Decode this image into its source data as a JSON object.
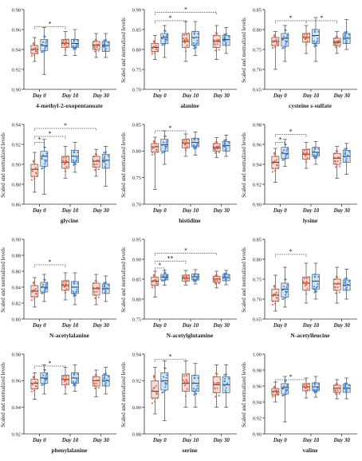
{
  "figure": {
    "colors": {
      "group_a": "#e8593a",
      "group_b": "#2f7fd6",
      "axis": "#333333",
      "sig": "#444444"
    }
  },
  "chart_data": [
    {
      "type": "box",
      "xlabel": "4-methyl-2-oxopentanoate",
      "ylabel": "",
      "ylim": [
        0.9,
        0.98
      ],
      "yticks": [
        0.9,
        0.92,
        0.94,
        0.96,
        0.98
      ],
      "categories": [
        "Day 0",
        "Day 10",
        "Day 30"
      ],
      "series": [
        {
          "group": "a",
          "boxes": [
            [
              0.928,
              0.936,
              0.94,
              0.944,
              0.952
            ],
            [
              0.934,
              0.942,
              0.946,
              0.95,
              0.958
            ],
            [
              0.932,
              0.94,
              0.944,
              0.948,
              0.956
            ]
          ]
        },
        {
          "group": "b",
          "boxes": [
            [
              0.915,
              0.939,
              0.944,
              0.95,
              0.962
            ],
            [
              0.934,
              0.942,
              0.946,
              0.95,
              0.96
            ],
            [
              0.932,
              0.938,
              0.944,
              0.948,
              0.956
            ]
          ]
        }
      ],
      "significance": [
        {
          "from": 0,
          "to": 1,
          "label": "*",
          "level": 0.963
        }
      ]
    },
    {
      "type": "box",
      "xlabel": "alanine",
      "ylabel": "Scaled and normalized levels",
      "ylim": [
        0.7,
        0.9
      ],
      "yticks": [
        0.7,
        0.75,
        0.8,
        0.85,
        0.9
      ],
      "categories": [
        "Day 0",
        "Day 10",
        "Day 30"
      ],
      "series": [
        {
          "group": "a",
          "boxes": [
            [
              0.775,
              0.795,
              0.805,
              0.815,
              0.835
            ],
            [
              0.77,
              0.805,
              0.82,
              0.84,
              0.87
            ],
            [
              0.775,
              0.805,
              0.82,
              0.835,
              0.86
            ]
          ]
        },
        {
          "group": "b",
          "boxes": [
            [
              0.78,
              0.815,
              0.83,
              0.84,
              0.86
            ],
            [
              0.785,
              0.81,
              0.83,
              0.845,
              0.87
            ],
            [
              0.79,
              0.81,
              0.825,
              0.835,
              0.855
            ]
          ]
        }
      ],
      "significance": [
        {
          "from": 0,
          "to": 1,
          "label": "*",
          "level": 0.872
        },
        {
          "from": 0,
          "to": 2,
          "label": "*",
          "level": 0.893
        }
      ]
    },
    {
      "type": "box",
      "xlabel": "cysteine s-sulfate",
      "ylabel": "Scaled and normalized levels",
      "ylim": [
        0.65,
        0.85
      ],
      "yticks": [
        0.65,
        0.7,
        0.75,
        0.8,
        0.85
      ],
      "categories": [
        "Day 0",
        "Day 10",
        "Day 30"
      ],
      "series": [
        {
          "group": "a",
          "boxes": [
            [
              0.7,
              0.76,
              0.77,
              0.78,
              0.795
            ],
            [
              0.74,
              0.768,
              0.78,
              0.79,
              0.81
            ],
            [
              0.74,
              0.76,
              0.768,
              0.778,
              0.795
            ]
          ]
        },
        {
          "group": "b",
          "boxes": [
            [
              0.72,
              0.758,
              0.778,
              0.79,
              0.81
            ],
            [
              0.72,
              0.765,
              0.785,
              0.8,
              0.83
            ],
            [
              0.75,
              0.765,
              0.778,
              0.79,
              0.825
            ]
          ]
        }
      ],
      "significance": [
        {
          "from": 0,
          "to": 1,
          "label": "*",
          "level": 0.822
        },
        {
          "from": 1,
          "to": 2,
          "label": "*",
          "level": 0.822
        }
      ]
    },
    {
      "type": "box",
      "xlabel": "glycine",
      "ylabel": "Scaled and normalized levels",
      "ylim": [
        0.86,
        0.94
      ],
      "yticks": [
        0.86,
        0.88,
        0.9,
        0.92,
        0.94
      ],
      "categories": [
        "Day 0",
        "Day 10",
        "Day 30"
      ],
      "series": [
        {
          "group": "a",
          "boxes": [
            [
              0.872,
              0.888,
              0.895,
              0.9,
              0.912
            ],
            [
              0.886,
              0.896,
              0.902,
              0.908,
              0.918
            ],
            [
              0.888,
              0.897,
              0.903,
              0.908,
              0.915
            ]
          ]
        },
        {
          "group": "b",
          "boxes": [
            [
              0.87,
              0.898,
              0.908,
              0.913,
              0.925
            ],
            [
              0.892,
              0.902,
              0.908,
              0.914,
              0.922
            ],
            [
              0.878,
              0.896,
              0.904,
              0.91,
              0.918
            ]
          ]
        }
      ],
      "significance": [
        {
          "from": 0,
          "to": 0.5,
          "label": "*",
          "level": 0.922
        },
        {
          "from": 0,
          "to": 1,
          "label": "*",
          "level": 0.928
        },
        {
          "from": 0,
          "to": 2,
          "label": "*",
          "level": 0.936
        }
      ]
    },
    {
      "type": "box",
      "xlabel": "histidine",
      "ylabel": "Scaled and normalized levels",
      "ylim": [
        0.7,
        0.85
      ],
      "yticks": [
        0.7,
        0.75,
        0.8,
        0.85
      ],
      "categories": [
        "Day 0",
        "Day 10",
        "Day 30"
      ],
      "series": [
        {
          "group": "a",
          "boxes": [
            [
              0.728,
              0.798,
              0.808,
              0.814,
              0.826
            ],
            [
              0.79,
              0.806,
              0.815,
              0.822,
              0.832
            ],
            [
              0.788,
              0.8,
              0.806,
              0.814,
              0.825
            ]
          ]
        },
        {
          "group": "b",
          "boxes": [
            [
              0.775,
              0.8,
              0.812,
              0.822,
              0.838
            ],
            [
              0.792,
              0.808,
              0.816,
              0.824,
              0.836
            ],
            [
              0.79,
              0.8,
              0.81,
              0.818,
              0.83
            ]
          ]
        }
      ],
      "significance": [
        {
          "from": 0,
          "to": 1,
          "label": "*",
          "level": 0.838
        }
      ]
    },
    {
      "type": "box",
      "xlabel": "lysine",
      "ylabel": "Scaled and normalized levels",
      "ylim": [
        0.9,
        0.98
      ],
      "yticks": [
        0.9,
        0.92,
        0.94,
        0.96,
        0.98
      ],
      "categories": [
        "Day 0",
        "Day 10",
        "Day 30"
      ],
      "series": [
        {
          "group": "a",
          "boxes": [
            [
              0.922,
              0.936,
              0.942,
              0.948,
              0.956
            ],
            [
              0.936,
              0.945,
              0.95,
              0.955,
              0.962
            ],
            [
              0.926,
              0.94,
              0.946,
              0.951,
              0.958
            ]
          ]
        },
        {
          "group": "b",
          "boxes": [
            [
              0.938,
              0.946,
              0.951,
              0.957,
              0.965
            ],
            [
              0.94,
              0.948,
              0.952,
              0.957,
              0.963
            ],
            [
              0.93,
              0.942,
              0.948,
              0.954,
              0.961
            ]
          ]
        }
      ],
      "significance": [
        {
          "from": 0,
          "to": 0.5,
          "label": "*",
          "level": 0.962
        },
        {
          "from": 0,
          "to": 1,
          "label": "*",
          "level": 0.97
        }
      ]
    },
    {
      "type": "box",
      "xlabel": "N-acetylalanine",
      "ylabel": "Scaled and normalized levels",
      "ylim": [
        0.8,
        0.9
      ],
      "yticks": [
        0.8,
        0.82,
        0.84,
        0.86,
        0.88,
        0.9
      ],
      "categories": [
        "Day 0",
        "Day 10",
        "Day 30"
      ],
      "series": [
        {
          "group": "a",
          "boxes": [
            [
              0.815,
              0.828,
              0.835,
              0.842,
              0.852
            ],
            [
              0.824,
              0.836,
              0.842,
              0.848,
              0.858
            ],
            [
              0.818,
              0.83,
              0.838,
              0.845,
              0.856
            ]
          ]
        },
        {
          "group": "b",
          "boxes": [
            [
              0.822,
              0.834,
              0.84,
              0.846,
              0.856
            ],
            [
              0.818,
              0.832,
              0.84,
              0.847,
              0.858
            ],
            [
              0.822,
              0.832,
              0.838,
              0.844,
              0.854
            ]
          ]
        }
      ],
      "significance": [
        {
          "from": 0,
          "to": 1,
          "label": "*",
          "level": 0.868
        }
      ]
    },
    {
      "type": "box",
      "xlabel": "N-acetylglutamine",
      "ylabel": "Scaled and normalized levels",
      "ylim": [
        0.75,
        0.95
      ],
      "yticks": [
        0.75,
        0.8,
        0.85,
        0.9,
        0.95
      ],
      "categories": [
        "Day 0",
        "Day 10",
        "Day 30"
      ],
      "series": [
        {
          "group": "a",
          "boxes": [
            [
              0.805,
              0.835,
              0.845,
              0.855,
              0.87
            ],
            [
              0.835,
              0.845,
              0.852,
              0.86,
              0.872
            ],
            [
              0.828,
              0.842,
              0.85,
              0.857,
              0.87
            ]
          ]
        },
        {
          "group": "b",
          "boxes": [
            [
              0.835,
              0.848,
              0.855,
              0.862,
              0.872
            ],
            [
              0.838,
              0.848,
              0.856,
              0.863,
              0.874
            ],
            [
              0.836,
              0.846,
              0.854,
              0.862,
              0.872
            ]
          ]
        }
      ],
      "significance": [
        {
          "from": 0,
          "to": 0.5,
          "label": "*",
          "level": 0.878
        },
        {
          "from": 0,
          "to": 1,
          "label": "**",
          "level": 0.895
        },
        {
          "from": 0,
          "to": 2,
          "label": "*",
          "level": 0.915
        }
      ]
    },
    {
      "type": "box",
      "xlabel": "N-acetylleucine",
      "ylabel": "Scaled and normalized levels",
      "ylim": [
        0.65,
        0.85
      ],
      "yticks": [
        0.65,
        0.7,
        0.75,
        0.8,
        0.85
      ],
      "categories": [
        "Day 0",
        "Day 10",
        "Day 30"
      ],
      "series": [
        {
          "group": "a",
          "boxes": [
            [
              0.67,
              0.695,
              0.71,
              0.725,
              0.76
            ],
            [
              0.69,
              0.722,
              0.74,
              0.755,
              0.79
            ],
            [
              0.69,
              0.722,
              0.738,
              0.75,
              0.78
            ]
          ]
        },
        {
          "group": "b",
          "boxes": [
            [
              0.68,
              0.705,
              0.725,
              0.74,
              0.78
            ],
            [
              0.7,
              0.725,
              0.745,
              0.762,
              0.79
            ],
            [
              0.7,
              0.722,
              0.735,
              0.748,
              0.775
            ]
          ]
        }
      ],
      "significance": [
        {
          "from": 0,
          "to": 1,
          "label": "*",
          "level": 0.812
        }
      ]
    },
    {
      "type": "box",
      "xlabel": "phenylalanine",
      "ylabel": "Scaled and normalized levels",
      "ylim": [
        0.92,
        0.98
      ],
      "yticks": [
        0.92,
        0.94,
        0.96,
        0.98
      ],
      "categories": [
        "Day 0",
        "Day 10",
        "Day 30"
      ],
      "series": [
        {
          "group": "a",
          "boxes": [
            [
              0.946,
              0.954,
              0.958,
              0.961,
              0.966
            ],
            [
              0.95,
              0.957,
              0.961,
              0.964,
              0.97
            ],
            [
              0.948,
              0.956,
              0.96,
              0.963,
              0.968
            ]
          ]
        },
        {
          "group": "b",
          "boxes": [
            [
              0.95,
              0.958,
              0.962,
              0.966,
              0.972
            ],
            [
              0.952,
              0.958,
              0.962,
              0.966,
              0.972
            ],
            [
              0.95,
              0.956,
              0.96,
              0.964,
              0.97
            ]
          ]
        }
      ],
      "significance": [
        {
          "from": 0,
          "to": 1,
          "label": "*",
          "level": 0.971
        }
      ]
    },
    {
      "type": "box",
      "xlabel": "serine",
      "ylabel": "Scaled and normalized levels",
      "ylim": [
        0.88,
        0.94
      ],
      "yticks": [
        0.88,
        0.9,
        0.92,
        0.94
      ],
      "categories": [
        "Day 0",
        "Day 10",
        "Day 30"
      ],
      "series": [
        {
          "group": "a",
          "boxes": [
            [
              0.895,
              0.907,
              0.912,
              0.92,
              0.93
            ],
            [
              0.9,
              0.912,
              0.918,
              0.925,
              0.935
            ],
            [
              0.9,
              0.911,
              0.917,
              0.923,
              0.932
            ]
          ]
        },
        {
          "group": "b",
          "boxes": [
            [
              0.89,
              0.913,
              0.92,
              0.926,
              0.935
            ],
            [
              0.9,
              0.912,
              0.918,
              0.924,
              0.933
            ],
            [
              0.9,
              0.911,
              0.917,
              0.923,
              0.932
            ]
          ]
        }
      ],
      "significance": [
        {
          "from": 0,
          "to": 1,
          "label": "*",
          "level": 0.936
        }
      ]
    },
    {
      "type": "box",
      "xlabel": "valine",
      "ylabel": "Scaled and normalized levels",
      "ylim": [
        0.9,
        1.0
      ],
      "yticks": [
        0.9,
        0.92,
        0.94,
        0.96,
        0.98,
        1.0
      ],
      "categories": [
        "Day 0",
        "Day 10",
        "Day 30"
      ],
      "series": [
        {
          "group": "a",
          "boxes": [
            [
              0.94,
              0.949,
              0.953,
              0.957,
              0.965
            ],
            [
              0.945,
              0.954,
              0.959,
              0.963,
              0.97
            ],
            [
              0.944,
              0.952,
              0.957,
              0.961,
              0.968
            ]
          ]
        },
        {
          "group": "b",
          "boxes": [
            [
              0.915,
              0.95,
              0.958,
              0.963,
              0.972
            ],
            [
              0.946,
              0.954,
              0.959,
              0.964,
              0.972
            ],
            [
              0.944,
              0.952,
              0.957,
              0.962,
              0.97
            ]
          ]
        }
      ],
      "significance": [
        {
          "from": 0,
          "to": 1,
          "label": "*",
          "level": 0.968
        }
      ]
    }
  ]
}
